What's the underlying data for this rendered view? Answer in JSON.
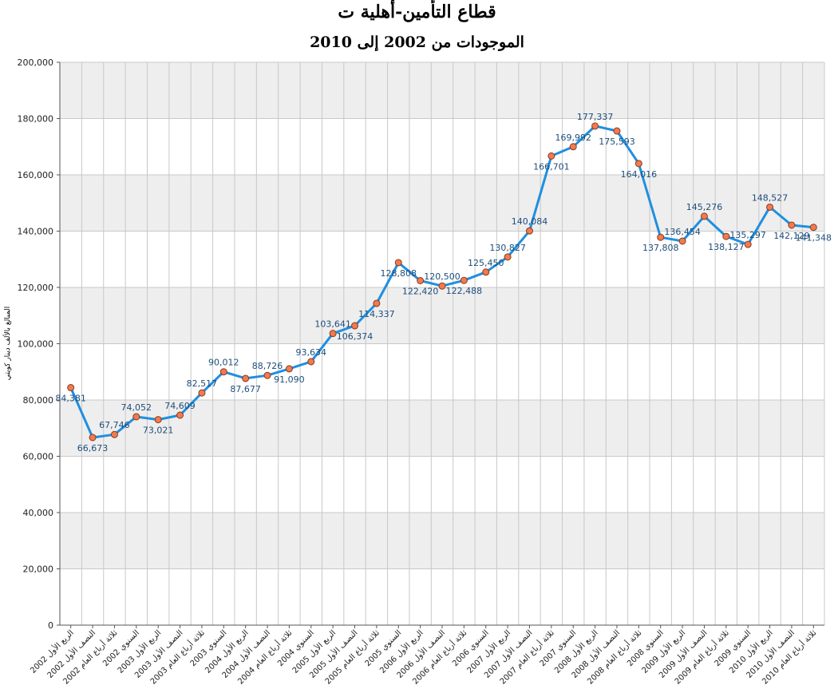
{
  "chart_data": {
    "type": "line",
    "title": "قطاع التأمين-أهلية ت",
    "subtitle": "الموجودات من 2002 إلى 2010",
    "ylabel": "المبالغ بالألف دينار كويتي",
    "xlabel": "",
    "ylim": [
      0,
      200000
    ],
    "yticks": [
      "0",
      "20,000",
      "40,000",
      "60,000",
      "80,000",
      "100,000",
      "120,000",
      "140,000",
      "160,000",
      "180,000",
      "200,000"
    ],
    "grid": "horizontal and vertical, alternating grey bands",
    "categories": [
      "الربع الأول 2002",
      "النصف الأول 2002",
      "ثلاثة أرباع العام 2002",
      "السنوي 2002",
      "الربع الأول 2003",
      "النصف الأول 2003",
      "ثلاثة أرباع العام 2003",
      "السنوي 2003",
      "الربع الأول 2004",
      "النصف الأول 2004",
      "ثلاثة أرباع العام 2004",
      "السنوي 2004",
      "الربع الأول 2005",
      "النصف الأول 2005",
      "ثلاثة أرباع العام 2005",
      "السنوي 2005",
      "الربع الأول 2006",
      "النصف الأول 2006",
      "ثلاثة أرباع العام 2006",
      "السنوي 2006",
      "الربع الأول 2007",
      "النصف الأول 2007",
      "ثلاثة أرباع العام 2007",
      "السنوي 2007",
      "الربع الأول 2008",
      "النصف الأول 2008",
      "ثلاثة أرباع العام 2008",
      "السنوي 2008",
      "الربع الأول 2009",
      "النصف الأول 2009",
      "ثلاثة أرباع العام 2009",
      "السنوي 2009",
      "الربع الأول 2010",
      "النصف الأول 2010",
      "ثلاثة أرباع العام 2010"
    ],
    "values": [
      84381,
      66673,
      67746,
      74052,
      73021,
      74609,
      82517,
      90012,
      87677,
      88726,
      91090,
      93634,
      103641,
      106374,
      114337,
      128808,
      122420,
      120500,
      122488,
      125450,
      130827,
      140084,
      166701,
      169992,
      177337,
      175593,
      164016,
      137808,
      136454,
      145276,
      138127,
      135297,
      148527,
      142129,
      141348
    ],
    "data_labels": [
      "84,381",
      "66,673",
      "67,746",
      "74,052",
      "73,021",
      "74,609",
      "82,517",
      "90,012",
      "87,677",
      "88,726",
      "91,090",
      "93,634",
      "103,641",
      "106,374",
      "114,337",
      "128,808",
      "122,420",
      "120,500",
      "122,488",
      "125,450",
      "130,827",
      "140,084",
      "166,701",
      "169,992",
      "177,337",
      "175,593",
      "164,016",
      "137,808",
      "136,454",
      "145,276",
      "138,127",
      "135,297",
      "148,527",
      "142,129",
      "141,348"
    ],
    "label_position": [
      "below",
      "below",
      "above",
      "above",
      "below",
      "above",
      "above",
      "above",
      "below",
      "above",
      "below",
      "above",
      "above",
      "below",
      "below",
      "below",
      "below",
      "above",
      "below",
      "above",
      "above",
      "above",
      "below",
      "above",
      "above",
      "below",
      "below",
      "below",
      "above",
      "above",
      "below",
      "above",
      "above",
      "below",
      "below"
    ],
    "colors": {
      "line": "#1f8fe0",
      "marker_fill": "#f07a52",
      "marker_stroke": "#8a3a1a",
      "label_text": "#1c4d7a",
      "band": "#eeeeee",
      "grid": "#c8c8c8",
      "axis": "#555555"
    }
  }
}
